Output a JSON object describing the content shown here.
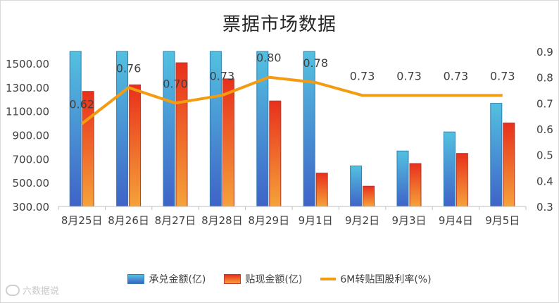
{
  "chart_data": {
    "type": "bar",
    "title": "票据市场数据",
    "categories": [
      "8月25日",
      "8月26日",
      "8月27日",
      "8月28日",
      "8月29日",
      "9月1日",
      "9月2日",
      "9月3日",
      "9月4日",
      "9月5日"
    ],
    "series": [
      {
        "name": "承兑金额(亿)",
        "type": "bar",
        "axis": "left",
        "values": [
          1600,
          1600,
          1600,
          1600,
          1600,
          1600,
          640,
          765,
          925,
          1165
        ]
      },
      {
        "name": "贴现金额(亿)",
        "type": "bar",
        "axis": "left",
        "values": [
          1265,
          1320,
          1505,
          1370,
          1185,
          580,
          470,
          660,
          745,
          1000
        ]
      },
      {
        "name": "6M转贴国股利率(%)",
        "type": "line",
        "axis": "right",
        "values": [
          0.62,
          0.76,
          0.7,
          0.73,
          0.8,
          0.78,
          0.73,
          0.73,
          0.73,
          0.73
        ],
        "labels": [
          "0.62",
          "0.76",
          "0.70",
          "0.73",
          "0.80",
          "0.78",
          "0.73",
          "0.73",
          "0.73",
          "0.73"
        ]
      }
    ],
    "left_axis": {
      "ylim": [
        300,
        1600
      ],
      "ticks": [
        "300.00",
        "500.00",
        "700.00",
        "900.00",
        "1100.00",
        "1300.00",
        "1500.00"
      ]
    },
    "right_axis": {
      "ylim": [
        0.3,
        0.9
      ],
      "ticks": [
        "0.3",
        "0.4",
        "0.5",
        "0.6",
        "0.7",
        "0.8",
        "0.9"
      ]
    },
    "legend_position": "bottom",
    "grid": false,
    "colors": {
      "acceptance": "#3fa9d6",
      "discount": "#e8301c",
      "rate": "#f39c12"
    }
  },
  "watermark": "六数据说"
}
